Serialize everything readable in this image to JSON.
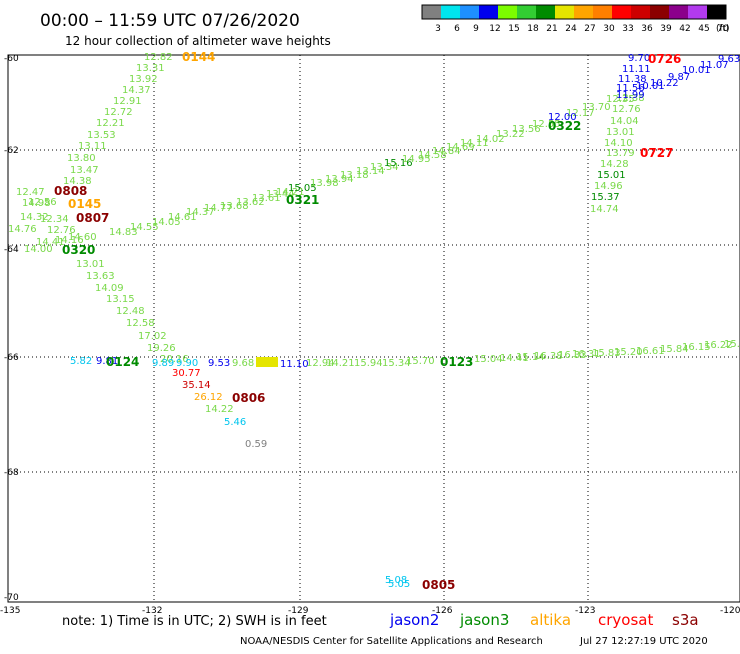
{
  "header": {
    "title": "00:00 – 11:59 UTC 07/26/2020",
    "subtitle": "12 hour collection of altimeter wave heights"
  },
  "legend": {
    "labels": [
      "3",
      "6",
      "9",
      "12",
      "15",
      "18",
      "21",
      "24",
      "27",
      "30",
      "33",
      "36",
      "39",
      "42",
      "45",
      "70"
    ],
    "unit": "(ft)",
    "colors": [
      "#808080",
      "#00e5ee",
      "#1e90ff",
      "#0000ee",
      "#7cfc00",
      "#32cd32",
      "#008b00",
      "#e5e500",
      "#ffa500",
      "#ff7f00",
      "#ff0000",
      "#cd0000",
      "#8b0000",
      "#8b008b",
      "#b23aee",
      "#000000"
    ]
  },
  "axes": {
    "lat_labels": [
      "-60",
      "-62",
      "-64",
      "-66",
      "-68",
      "-70"
    ],
    "lon_labels": [
      "-135",
      "-132",
      "-129",
      "-126",
      "-123",
      "-120"
    ]
  },
  "labels": {
    "track_a": [
      "12.82",
      "13.31",
      "13.92",
      "14.37",
      "12.91",
      "12.72",
      "12.21",
      "13.53",
      "13.11",
      "13.80",
      "13.47",
      "14.38",
      "12.47",
      "14.98",
      "12.56",
      "14.32",
      "12.34",
      "14.76",
      "12.76",
      "14.16",
      "14.41",
      "14.60",
      "14.00"
    ],
    "track_a_lower": [
      "13.01",
      "13.63",
      "14.09",
      "13.15",
      "12.48",
      "12.58",
      "17.02",
      "19.26",
      "20.16"
    ],
    "track_b": [
      "14.83",
      "14.55",
      "14.05",
      "14.61",
      "14.37",
      "14.77",
      "13.68",
      "13.62",
      "13.61",
      "13.44",
      "14.21",
      "15.05",
      "13.98",
      "13.94",
      "13.18",
      "13.14",
      "13.34",
      "15.16",
      "14.95",
      "14.58",
      "14.84",
      "14.69",
      "14.11",
      "14.02",
      "13.22",
      "13.56",
      "12.55",
      "12.17",
      "13.70"
    ],
    "track_b_blue": "12.00",
    "track_c_green": [
      "12.35",
      "12.38",
      "12.76",
      "14.04",
      "13.01",
      "14.10",
      "13.79",
      "14.28",
      "15.01",
      "14.96",
      "15.37",
      "14.74"
    ],
    "track_c_blue": [
      "9.70",
      "11.11",
      "11.38",
      "11.56",
      "11.99",
      "10.01",
      "10.22",
      "10.01",
      "9.87",
      "11.07",
      "9.63"
    ],
    "track_d": [
      "11.10",
      "12.94",
      "14.21",
      "15.94",
      "15.34",
      "15.70",
      "15.04",
      "14.41",
      "15.14",
      "16.38",
      "16.33",
      "16.31",
      "15.83",
      "15.20",
      "16.61",
      "15.84",
      "16.15",
      "16.22",
      "15.76"
    ],
    "track_d_mixed": {
      "cyan": "5.82",
      "blue1": "9.81",
      "blue2": "9.53",
      "green1": "9.68",
      "cyan2": "9.89",
      "cyan3": "9.90"
    },
    "track_e": {
      "r1": "30.77",
      "r2": "35.14",
      "o1": "26.12",
      "g1": "14.22",
      "c1": "5.46",
      "gray": "0.59"
    },
    "bottom": {
      "c1": "5.08",
      "c2": "5.05"
    },
    "times": {
      "t0144": "0144",
      "t0726": "0726",
      "t0727": "0727",
      "t0808": "0808",
      "t0145": "0145",
      "t0807": "0807",
      "t0320": "0320",
      "t0321": "0321",
      "t0322": "0322",
      "t0124": "0124",
      "t0123": "0123",
      "t0806": "0806",
      "t0805": "0805"
    }
  },
  "footer": {
    "note": "note: 1) Time is in UTC; 2) SWH is in feet",
    "satellites": [
      {
        "name": "jason2",
        "color": "#0000ee"
      },
      {
        "name": "jason3",
        "color": "#008b00"
      },
      {
        "name": "altika",
        "color": "#ffa500"
      },
      {
        "name": "cryosat",
        "color": "#ff0000"
      },
      {
        "name": "s3a",
        "color": "#8b0000"
      }
    ],
    "credit": "NOAA/NESDIS Center for Satellite Applications and Research",
    "timestamp": "Jul 27 12:27:19 UTC 2020"
  }
}
